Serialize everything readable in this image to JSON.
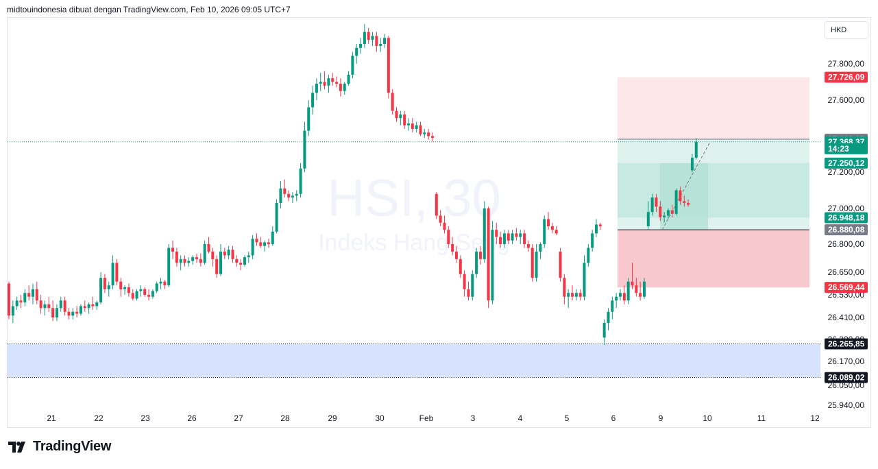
{
  "header": {
    "attribution": "midtouindonesia dibuat dengan TradingView.com, Feb 10, 2026 09:05 UTC+7"
  },
  "toolbar": {
    "currency": "HKD"
  },
  "footer": {
    "brand": "TradingView"
  },
  "watermark": {
    "symbol": "HSI, 30",
    "name": "Indeks Hang Seng"
  },
  "colors": {
    "up": "#089981",
    "down": "#f23645",
    "stop_zone": "#f7c9ce",
    "target_zone": "#c6e9e1",
    "blue_zone": "#d6e2fe"
  },
  "chart_data": {
    "type": "candlestick",
    "x_ticks": [
      "21",
      "22",
      "23",
      "26",
      "27",
      "28",
      "29",
      "30",
      "Feb",
      "3",
      "4",
      "5",
      "6",
      "9",
      "10",
      "11",
      "12"
    ],
    "y_ticks": [
      "27.800,00",
      "27.600,00",
      "27.200,00",
      "27.000,00",
      "26.800,00",
      "26.650,00",
      "26.530,00",
      "26.410,00",
      "26.290,00",
      "26.170,00",
      "26.050,00",
      "25.940,00"
    ],
    "y_range": [
      25940,
      27880
    ],
    "price_labels": [
      {
        "text": "27.726,09",
        "value": 27726.09,
        "kind": "stop"
      },
      {
        "text": "27.383,05",
        "value": 27383.05,
        "kind": "level"
      },
      {
        "text": "27.368,37",
        "value": 27368.37,
        "kind": "last"
      },
      {
        "text": "14:23",
        "value": 27330,
        "kind": "countdown"
      },
      {
        "text": "27.250,12",
        "value": 27250.12,
        "kind": "target"
      },
      {
        "text": "26.948,18",
        "value": 26948.18,
        "kind": "target"
      },
      {
        "text": "26.880,08",
        "value": 26880.08,
        "kind": "entry"
      },
      {
        "text": "26.569,44",
        "value": 26569.44,
        "kind": "stop"
      },
      {
        "text": "26.265,85",
        "value": 26265.85,
        "kind": "support"
      },
      {
        "text": "26.089,02",
        "value": 26089.02,
        "kind": "support"
      }
    ],
    "zones": {
      "support_box": [
        26089.02,
        26265.85
      ],
      "long_position": {
        "entry": 26880.08,
        "stop": 26569.44,
        "target": 27383.05,
        "stop_top": 27726.09
      }
    },
    "closes": [
      26550,
      26520,
      26570,
      26560,
      26600,
      26580,
      26610,
      26630,
      26590,
      26560,
      26510,
      26480,
      26520,
      26530,
      26500,
      26550,
      26520,
      26490,
      26510,
      26500,
      26520,
      26530,
      26560,
      26540,
      26580,
      26550,
      26520,
      26540,
      26560,
      26600,
      26700,
      26680,
      26640,
      26600,
      26620,
      26590,
      26570,
      26560,
      26580,
      26570,
      26590,
      26600,
      26620,
      26640,
      26680,
      26700,
      26750,
      26820,
      26880,
      26900,
      26860,
      26830,
      26820,
      26800,
      26810,
      26790,
      26800,
      26770,
      26760,
      26820,
      26850,
      26880,
      26870,
      26840,
      26800,
      26820,
      26880,
      26900,
      26860,
      26830,
      26800,
      26780,
      26790,
      26760,
      26730,
      26750,
      26780,
      26800,
      26850,
      26900,
      26980,
      27050,
      27100,
      27150,
      27180,
      27150,
      27130,
      27140,
      27160,
      27170,
      27150,
      27180,
      27250,
      27350,
      27450,
      27550,
      27620,
      27700,
      27750,
      27720,
      27680,
      27700,
      27720,
      27740,
      27720,
      27650,
      27680,
      27710,
      27750,
      27700,
      27760,
      27800,
      27850,
      27880,
      27900,
      27920,
      27880,
      27860,
      27850,
      27900,
      27950,
      27980,
      28000,
      27980,
      27950,
      27920,
      27900,
      27860,
      27800,
      27700,
      27600,
      27550,
      27500,
      27520,
      27480,
      27450,
      27420,
      27430,
      27440,
      27450,
      27420,
      27400,
      27380,
      27350,
      27360,
      27370,
      27390,
      27400,
      27380,
      27370,
      27360,
      27350,
      27365,
      27370,
      27355,
      27360,
      27380,
      27370,
      27368,
      27383,
      27380,
      27370,
      27360,
      27365,
      27368,
      27370,
      27360,
      27368
    ],
    "candles": [
      [
        0,
        26590,
        26600,
        26400,
        26420
      ],
      [
        1,
        26420,
        26500,
        26380,
        26470
      ],
      [
        2,
        26470,
        26520,
        26450,
        26500
      ],
      [
        3,
        26500,
        26530,
        26460,
        26490
      ],
      [
        4,
        26490,
        26560,
        26470,
        26540
      ],
      [
        5,
        26540,
        26580,
        26500,
        26520
      ],
      [
        6,
        26520,
        26590,
        26480,
        26560
      ],
      [
        7,
        26560,
        26600,
        26480,
        26500
      ],
      [
        8,
        26500,
        26530,
        26430,
        26460
      ],
      [
        9,
        26460,
        26500,
        26420,
        26480
      ],
      [
        10,
        26480,
        26520,
        26440,
        26460
      ],
      [
        11,
        26460,
        26500,
        26390,
        26410
      ],
      [
        12,
        26410,
        26480,
        26390,
        26460
      ],
      [
        13,
        26460,
        26520,
        26440,
        26500
      ],
      [
        14,
        26500,
        26520,
        26420,
        26440
      ],
      [
        15,
        26440,
        26460,
        26400,
        26420
      ],
      [
        16,
        26420,
        26460,
        26400,
        26440
      ],
      [
        17,
        26440,
        26470,
        26410,
        26430
      ],
      [
        18,
        26430,
        26480,
        26420,
        26470
      ],
      [
        19,
        26470,
        26500,
        26440,
        26460
      ],
      [
        20,
        26460,
        26490,
        26430,
        26480
      ],
      [
        21,
        26480,
        26520,
        26450,
        26470
      ],
      [
        22,
        26470,
        26500,
        26450,
        26490
      ],
      [
        23,
        26490,
        26650,
        26480,
        26620
      ],
      [
        24,
        26620,
        26640,
        26540,
        26560
      ],
      [
        25,
        26560,
        26600,
        26520,
        26580
      ],
      [
        26,
        26580,
        26740,
        26560,
        26700
      ],
      [
        27,
        26700,
        26720,
        26580,
        26600
      ],
      [
        28,
        26600,
        26620,
        26520,
        26560
      ],
      [
        29,
        26560,
        26580,
        26530,
        26570
      ],
      [
        30,
        26570,
        26590,
        26520,
        26540
      ],
      [
        31,
        26540,
        26560,
        26500,
        26510
      ],
      [
        32,
        26510,
        26560,
        26500,
        26550
      ],
      [
        33,
        26550,
        26580,
        26520,
        26560
      ],
      [
        34,
        26560,
        26570,
        26520,
        26530
      ],
      [
        35,
        26530,
        26560,
        26500,
        26520
      ],
      [
        36,
        26520,
        26560,
        26510,
        26550
      ],
      [
        37,
        26550,
        26600,
        26540,
        26590
      ],
      [
        38,
        26590,
        26620,
        26560,
        26600
      ],
      [
        39,
        26600,
        26610,
        26560,
        26580
      ],
      [
        40,
        26580,
        26800,
        26570,
        26780
      ],
      [
        41,
        26780,
        26820,
        26720,
        26760
      ],
      [
        42,
        26760,
        26780,
        26680,
        26700
      ],
      [
        43,
        26700,
        26740,
        26660,
        26720
      ],
      [
        44,
        26720,
        26740,
        26680,
        26700
      ],
      [
        45,
        26700,
        26730,
        26680,
        26710
      ],
      [
        46,
        26710,
        26740,
        26690,
        26730
      ],
      [
        47,
        26730,
        26750,
        26700,
        26720
      ],
      [
        48,
        26720,
        26750,
        26680,
        26700
      ],
      [
        49,
        26700,
        26820,
        26690,
        26800
      ],
      [
        50,
        26800,
        26840,
        26750,
        26760
      ],
      [
        51,
        26760,
        26780,
        26680,
        26720
      ],
      [
        52,
        26720,
        26740,
        26620,
        26640
      ],
      [
        53,
        26640,
        26800,
        26630,
        26760
      ],
      [
        54,
        26760,
        26780,
        26720,
        26740
      ],
      [
        55,
        26740,
        26790,
        26720,
        26770
      ],
      [
        56,
        26770,
        26790,
        26700,
        26720
      ],
      [
        57,
        26720,
        26740,
        26680,
        26700
      ],
      [
        58,
        26700,
        26720,
        26660,
        26690
      ],
      [
        59,
        26690,
        26740,
        26680,
        26730
      ],
      [
        60,
        26730,
        26760,
        26700,
        26740
      ],
      [
        61,
        26740,
        26850,
        26720,
        26830
      ],
      [
        62,
        26830,
        26860,
        26790,
        26810
      ],
      [
        63,
        26810,
        26840,
        26780,
        26790
      ],
      [
        64,
        26790,
        26820,
        26760,
        26810
      ],
      [
        65,
        26810,
        26830,
        26780,
        26800
      ],
      [
        66,
        26800,
        26900,
        26790,
        26870
      ],
      [
        67,
        26870,
        27050,
        26860,
        27030
      ],
      [
        68,
        27030,
        27150,
        27000,
        27110
      ],
      [
        69,
        27110,
        27160,
        27060,
        27080
      ],
      [
        70,
        27080,
        27100,
        27040,
        27060
      ],
      [
        71,
        27060,
        27090,
        27030,
        27070
      ],
      [
        72,
        27070,
        27100,
        27040,
        27080
      ],
      [
        73,
        27080,
        27250,
        27060,
        27220
      ],
      [
        74,
        27220,
        27480,
        27200,
        27430
      ],
      [
        75,
        27430,
        27600,
        27400,
        27560
      ],
      [
        76,
        27560,
        27680,
        27520,
        27640
      ],
      [
        77,
        27640,
        27720,
        27600,
        27690
      ],
      [
        78,
        27690,
        27750,
        27650,
        27700
      ],
      [
        79,
        27700,
        27760,
        27660,
        27680
      ],
      [
        80,
        27680,
        27740,
        27640,
        27720
      ],
      [
        81,
        27720,
        27750,
        27680,
        27700
      ],
      [
        82,
        27700,
        27730,
        27670,
        27690
      ],
      [
        83,
        27690,
        27720,
        27620,
        27650
      ],
      [
        84,
        27650,
        27700,
        27630,
        27690
      ],
      [
        85,
        27690,
        27760,
        27680,
        27740
      ],
      [
        86,
        27740,
        27860,
        27720,
        27840
      ],
      [
        87,
        27840,
        27900,
        27800,
        27880
      ],
      [
        88,
        27880,
        27930,
        27850,
        27900
      ],
      [
        89,
        27900,
        28000,
        27880,
        27960
      ],
      [
        90,
        27960,
        27980,
        27900,
        27920
      ],
      [
        91,
        27920,
        27960,
        27890,
        27940
      ],
      [
        92,
        27940,
        27960,
        27860,
        27890
      ],
      [
        93,
        27890,
        27930,
        27860,
        27900
      ],
      [
        94,
        27900,
        27950,
        27880,
        27930
      ],
      [
        95,
        27930,
        27940,
        27610,
        27640
      ],
      [
        96,
        27640,
        27660,
        27520,
        27540
      ],
      [
        97,
        27540,
        27560,
        27480,
        27500
      ],
      [
        98,
        27500,
        27540,
        27460,
        27520
      ],
      [
        99,
        27520,
        27540,
        27440,
        27460
      ],
      [
        100,
        27460,
        27500,
        27430,
        27470
      ],
      [
        101,
        27470,
        27500,
        27420,
        27440
      ],
      [
        102,
        27440,
        27480,
        27420,
        27460
      ],
      [
        103,
        27460,
        27480,
        27400,
        27410
      ],
      [
        104,
        27410,
        27440,
        27390,
        27420
      ],
      [
        105,
        27420,
        27440,
        27380,
        27400
      ],
      [
        106,
        27400,
        27420,
        27370,
        27390
      ],
      [
        107,
        27080,
        27090,
        26940,
        26960
      ],
      [
        108,
        26960,
        26990,
        26900,
        26920
      ],
      [
        109,
        26920,
        26960,
        26860,
        26880
      ],
      [
        110,
        26880,
        26900,
        26780,
        26800
      ],
      [
        111,
        26800,
        26840,
        26740,
        26760
      ],
      [
        112,
        26760,
        26790,
        26700,
        26720
      ],
      [
        113,
        26720,
        26740,
        26620,
        26640
      ],
      [
        114,
        26640,
        26660,
        26520,
        26560
      ],
      [
        115,
        26560,
        26600,
        26500,
        26520
      ],
      [
        116,
        26520,
        26660,
        26500,
        26640
      ],
      [
        117,
        26640,
        26780,
        26620,
        26760
      ],
      [
        118,
        26760,
        26790,
        26690,
        26720
      ],
      [
        119,
        26720,
        27040,
        26700,
        27000
      ],
      [
        120,
        27000,
        27010,
        26460,
        26500
      ],
      [
        121,
        26500,
        26930,
        26480,
        26880
      ],
      [
        122,
        26880,
        26920,
        26800,
        26840
      ],
      [
        123,
        26840,
        26870,
        26780,
        26800
      ],
      [
        124,
        26800,
        26880,
        26780,
        26860
      ],
      [
        125,
        26860,
        26880,
        26800,
        26820
      ],
      [
        126,
        26820,
        26880,
        26800,
        26860
      ],
      [
        127,
        26860,
        26890,
        26820,
        26840
      ],
      [
        128,
        26840,
        26880,
        26800,
        26860
      ],
      [
        129,
        26860,
        26880,
        26780,
        26800
      ],
      [
        130,
        26800,
        26820,
        26760,
        26780
      ],
      [
        131,
        26780,
        26800,
        26600,
        26620
      ],
      [
        132,
        26620,
        26800,
        26600,
        26760
      ],
      [
        133,
        26760,
        26810,
        26720,
        26800
      ],
      [
        134,
        26800,
        26960,
        26780,
        26940
      ],
      [
        135,
        26940,
        26980,
        26880,
        26900
      ],
      [
        136,
        26900,
        26920,
        26860,
        26880
      ],
      [
        137,
        26880,
        26900,
        26850,
        26860
      ],
      [
        138,
        26760,
        26780,
        26600,
        26620
      ],
      [
        139,
        26620,
        26640,
        26480,
        26520
      ],
      [
        140,
        26520,
        26560,
        26460,
        26540
      ],
      [
        141,
        26540,
        26580,
        26500,
        26520
      ],
      [
        142,
        26520,
        26560,
        26500,
        26540
      ],
      [
        143,
        26540,
        26560,
        26500,
        26520
      ],
      [
        144,
        26520,
        26740,
        26500,
        26700
      ],
      [
        145,
        26700,
        26800,
        26680,
        26780
      ],
      [
        146,
        26780,
        26880,
        26760,
        26860
      ],
      [
        147,
        26860,
        26940,
        26840,
        26910
      ],
      [
        148,
        26910,
        26920,
        26880,
        26900
      ],
      [
        149,
        26300,
        26400,
        26260,
        26380
      ],
      [
        150,
        26380,
        26460,
        26340,
        26440
      ],
      [
        151,
        26440,
        26520,
        26400,
        26500
      ],
      [
        152,
        26500,
        26540,
        26460,
        26520
      ],
      [
        153,
        26520,
        26560,
        26500,
        26540
      ],
      [
        154,
        26540,
        26580,
        26480,
        26500
      ],
      [
        155,
        26500,
        26620,
        26480,
        26600
      ],
      [
        156,
        26600,
        26700,
        26560,
        26580
      ],
      [
        157,
        26580,
        26620,
        26520,
        26540
      ],
      [
        158,
        26540,
        26600,
        26500,
        26520
      ],
      [
        159,
        26520,
        26620,
        26510,
        26600
      ],
      [
        160,
        26900,
        27040,
        26880,
        26980
      ],
      [
        161,
        26980,
        27080,
        26960,
        27060
      ],
      [
        162,
        27060,
        27080,
        26980,
        27010
      ],
      [
        163,
        27010,
        27040,
        26930,
        26950
      ],
      [
        164,
        26950,
        26980,
        26920,
        26960
      ],
      [
        165,
        26960,
        27000,
        26940,
        26990
      ],
      [
        166,
        26990,
        27020,
        26950,
        26970
      ],
      [
        167,
        26970,
        27110,
        26960,
        27100
      ],
      [
        168,
        27100,
        27120,
        27020,
        27040
      ],
      [
        169,
        27040,
        27070,
        27010,
        27030
      ],
      [
        170,
        27030,
        27050,
        27010,
        27020
      ],
      [
        171,
        27210,
        27300,
        27200,
        27280
      ],
      [
        172,
        27280,
        27390,
        27270,
        27368
      ]
    ]
  }
}
